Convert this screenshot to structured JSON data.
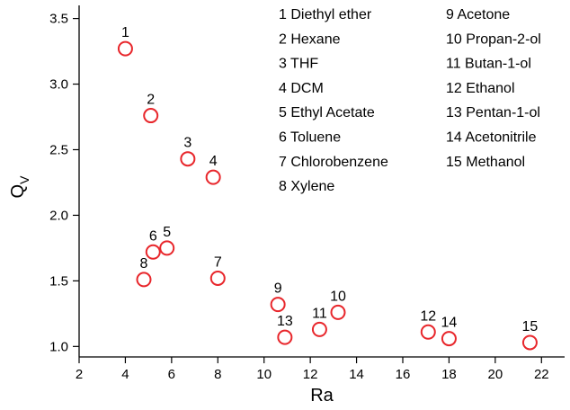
{
  "chart_data": {
    "type": "scatter",
    "xlabel": "Ra",
    "ylabel": "Q",
    "ylabel_subscript": "V",
    "xlim": [
      2,
      23
    ],
    "ylim": [
      0.92,
      3.6
    ],
    "x_ticks": [
      2,
      4,
      6,
      8,
      10,
      12,
      14,
      16,
      18,
      20,
      22
    ],
    "y_ticks": [
      1.0,
      1.5,
      2.0,
      2.5,
      3.0,
      3.5
    ],
    "marker_color": "#e8262b",
    "grid": false,
    "points": [
      {
        "label": "1",
        "x": 4.0,
        "y": 3.27
      },
      {
        "label": "2",
        "x": 5.1,
        "y": 2.76
      },
      {
        "label": "3",
        "x": 6.7,
        "y": 2.43
      },
      {
        "label": "4",
        "x": 7.8,
        "y": 2.29
      },
      {
        "label": "5",
        "x": 5.8,
        "y": 1.75
      },
      {
        "label": "6",
        "x": 5.2,
        "y": 1.72
      },
      {
        "label": "7",
        "x": 8.0,
        "y": 1.52
      },
      {
        "label": "8",
        "x": 4.8,
        "y": 1.51
      },
      {
        "label": "9",
        "x": 10.6,
        "y": 1.32
      },
      {
        "label": "10",
        "x": 13.2,
        "y": 1.26
      },
      {
        "label": "11",
        "x": 12.4,
        "y": 1.13
      },
      {
        "label": "12",
        "x": 17.1,
        "y": 1.11
      },
      {
        "label": "13",
        "x": 10.9,
        "y": 1.07
      },
      {
        "label": "14",
        "x": 18.0,
        "y": 1.06
      },
      {
        "label": "15",
        "x": 21.5,
        "y": 1.03
      }
    ],
    "legend_col1": [
      "1 Diethyl ether",
      "2 Hexane",
      "3 THF",
      "4 DCM",
      "5 Ethyl Acetate",
      "6 Toluene",
      "7 Chlorobenzene",
      "8 Xylene"
    ],
    "legend_col2": [
      "9 Acetone",
      "10 Propan-2-ol",
      "11 Butan-1-ol",
      "12 Ethanol",
      "13 Pentan-1-ol",
      "14 Acetonitrile",
      "15 Methanol"
    ]
  }
}
